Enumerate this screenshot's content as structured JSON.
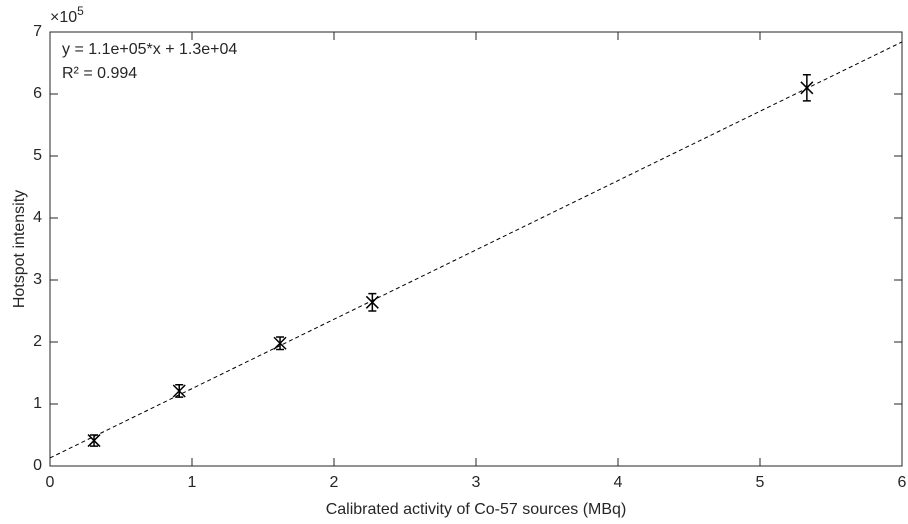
{
  "chart_data": {
    "type": "scatter",
    "x_label": "Calibrated activity of Co-57 sources (MBq)",
    "y_label": "Hotspot intensity",
    "y_exponent": {
      "base": "×10",
      "power": "5"
    },
    "annotations": [
      "y = 1.1e+05*x + 1.3e+04",
      "R² = 0.994"
    ],
    "xlim": [
      0,
      6
    ],
    "xticks": [
      0,
      1,
      2,
      3,
      4,
      5,
      6
    ],
    "ylim": [
      0,
      700000
    ],
    "yticks": [
      0,
      {
        "value": 100000,
        "label": "1"
      },
      {
        "value": 200000,
        "label": "2"
      },
      {
        "value": 300000,
        "label": "3"
      },
      {
        "value": 400000,
        "label": "4"
      },
      {
        "value": 500000,
        "label": "5"
      },
      {
        "value": 600000,
        "label": "6"
      },
      {
        "value": 700000,
        "label": "7"
      }
    ],
    "grid": false,
    "series": [
      {
        "color": "#000000",
        "marker": "x",
        "x": [
          0.31,
          0.91,
          1.62,
          2.27,
          5.33
        ],
        "values": [
          41000,
          121000,
          198000,
          264000,
          610000
        ],
        "errors": [
          9000,
          10000,
          10000,
          14000,
          21000
        ]
      },
      {
        "color": "#000000",
        "line_style": "dashed",
        "x": [
          0,
          6
        ],
        "values": [
          13000,
          684000
        ]
      }
    ]
  }
}
